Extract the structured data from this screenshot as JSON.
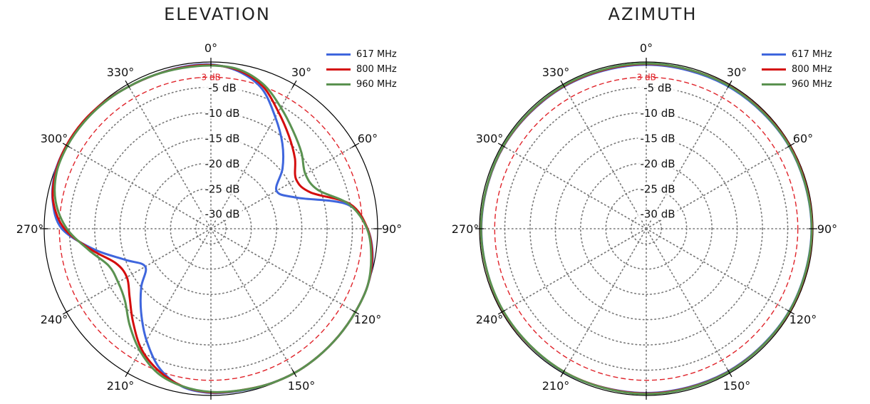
{
  "chart_data": [
    {
      "type": "polar-line",
      "title": "ELEVATION",
      "angle_ticks": [
        "0°",
        "30°",
        "60°",
        "90°",
        "120°",
        "150°",
        "180°",
        "210°",
        "240°",
        "270°",
        "300°",
        "330°"
      ],
      "radial_ticks": [
        "-3 dB",
        "-5 dB",
        "-10 dB",
        "-15 dB",
        "-20 dB",
        "-25 dB",
        "-30 dB"
      ],
      "rlim": [
        -33,
        0
      ],
      "reference_circle": {
        "value": -3,
        "label": "-3 dB",
        "style": "dashed",
        "color": "#e0242b"
      },
      "grid": true,
      "legend_position": "top-right",
      "angles": [
        0,
        10,
        20,
        30,
        40,
        50,
        60,
        70,
        80,
        90,
        100,
        110,
        120,
        130,
        140,
        150,
        160,
        170,
        180,
        190,
        200,
        210,
        220,
        230,
        240,
        250,
        260,
        270,
        280,
        290,
        300,
        310,
        320,
        330,
        340,
        350,
        360
      ],
      "series": [
        {
          "name": "617 MHz",
          "color": "#3f66dd",
          "values": [
            -0.5,
            -1.4,
            -3.5,
            -7.5,
            -11,
            -14.5,
            -18,
            -15,
            -5.5,
            -2,
            -0.5,
            0,
            0,
            0,
            0,
            0,
            -0.2,
            -0.4,
            -0.5,
            -1.2,
            -3.5,
            -7.5,
            -11.5,
            -15,
            -18,
            -15,
            -9.5,
            -3.5,
            -1.2,
            -0.2,
            0,
            0,
            -0.2,
            -0.5,
            -0.6,
            -0.5,
            -0.5
          ]
        },
        {
          "name": "800 MHz",
          "color": "#d40d0d",
          "values": [
            -0.6,
            -1.2,
            -3,
            -6.3,
            -9,
            -11.3,
            -13.5,
            -12,
            -5,
            -2,
            -0.6,
            0,
            0,
            0,
            0,
            0,
            -0.2,
            -0.5,
            -0.6,
            -1.3,
            -3,
            -5.5,
            -9,
            -12,
            -13.8,
            -13,
            -9,
            -4,
            -1.3,
            -0.3,
            0,
            0,
            -0.2,
            -0.5,
            -0.6,
            -0.6,
            -0.6
          ]
        },
        {
          "name": "960 MHz",
          "color": "#5a9250",
          "values": [
            -0.7,
            -1,
            -2.6,
            -5.3,
            -7.7,
            -9.6,
            -11.4,
            -10.5,
            -5.2,
            -2.1,
            -0.8,
            0,
            0,
            0,
            0,
            0,
            -0.2,
            -0.5,
            -0.7,
            -1.3,
            -2.5,
            -5,
            -8,
            -10.8,
            -11.8,
            -11.5,
            -8.5,
            -4.5,
            -1.8,
            -0.5,
            -0.2,
            -0.2,
            -0.3,
            -0.5,
            -0.6,
            -0.7,
            -0.7
          ]
        }
      ]
    },
    {
      "type": "polar-line",
      "title": "AZIMUTH",
      "angle_ticks": [
        "0°",
        "30°",
        "60°",
        "90°",
        "120°",
        "150°",
        "180°",
        "210°",
        "240°",
        "270°",
        "300°",
        "330°"
      ],
      "radial_ticks": [
        "-3 dB",
        "-5 dB",
        "-10 dB",
        "-15 dB",
        "-20 dB",
        "-25 dB",
        "-30 dB"
      ],
      "rlim": [
        -33,
        0
      ],
      "reference_circle": {
        "value": -3,
        "label": "-3 dB",
        "style": "dashed",
        "color": "#e0242b"
      },
      "grid": true,
      "legend_position": "top-right",
      "angles": [
        0,
        30,
        60,
        90,
        120,
        150,
        180,
        210,
        240,
        270,
        300,
        330,
        360
      ],
      "series": [
        {
          "name": "617 MHz",
          "color": "#3f66dd",
          "values": [
            -0.55,
            -0.5,
            -0.35,
            -0.3,
            -0.35,
            -0.45,
            -0.5,
            -0.3,
            -0.3,
            -0.35,
            -0.4,
            -0.5,
            -0.55
          ]
        },
        {
          "name": "800 MHz",
          "color": "#d40d0d",
          "values": [
            -0.4,
            -0.3,
            -0.2,
            -0.2,
            -0.25,
            -0.35,
            -0.4,
            -0.35,
            -0.3,
            -0.3,
            -0.35,
            -0.4,
            -0.4
          ]
        },
        {
          "name": "960 MHz",
          "color": "#5a9250",
          "values": [
            -0.3,
            -0.35,
            -0.3,
            -0.25,
            -0.3,
            -0.3,
            -0.3,
            -0.35,
            -0.35,
            -0.3,
            -0.3,
            -0.3,
            -0.3
          ]
        }
      ]
    }
  ]
}
